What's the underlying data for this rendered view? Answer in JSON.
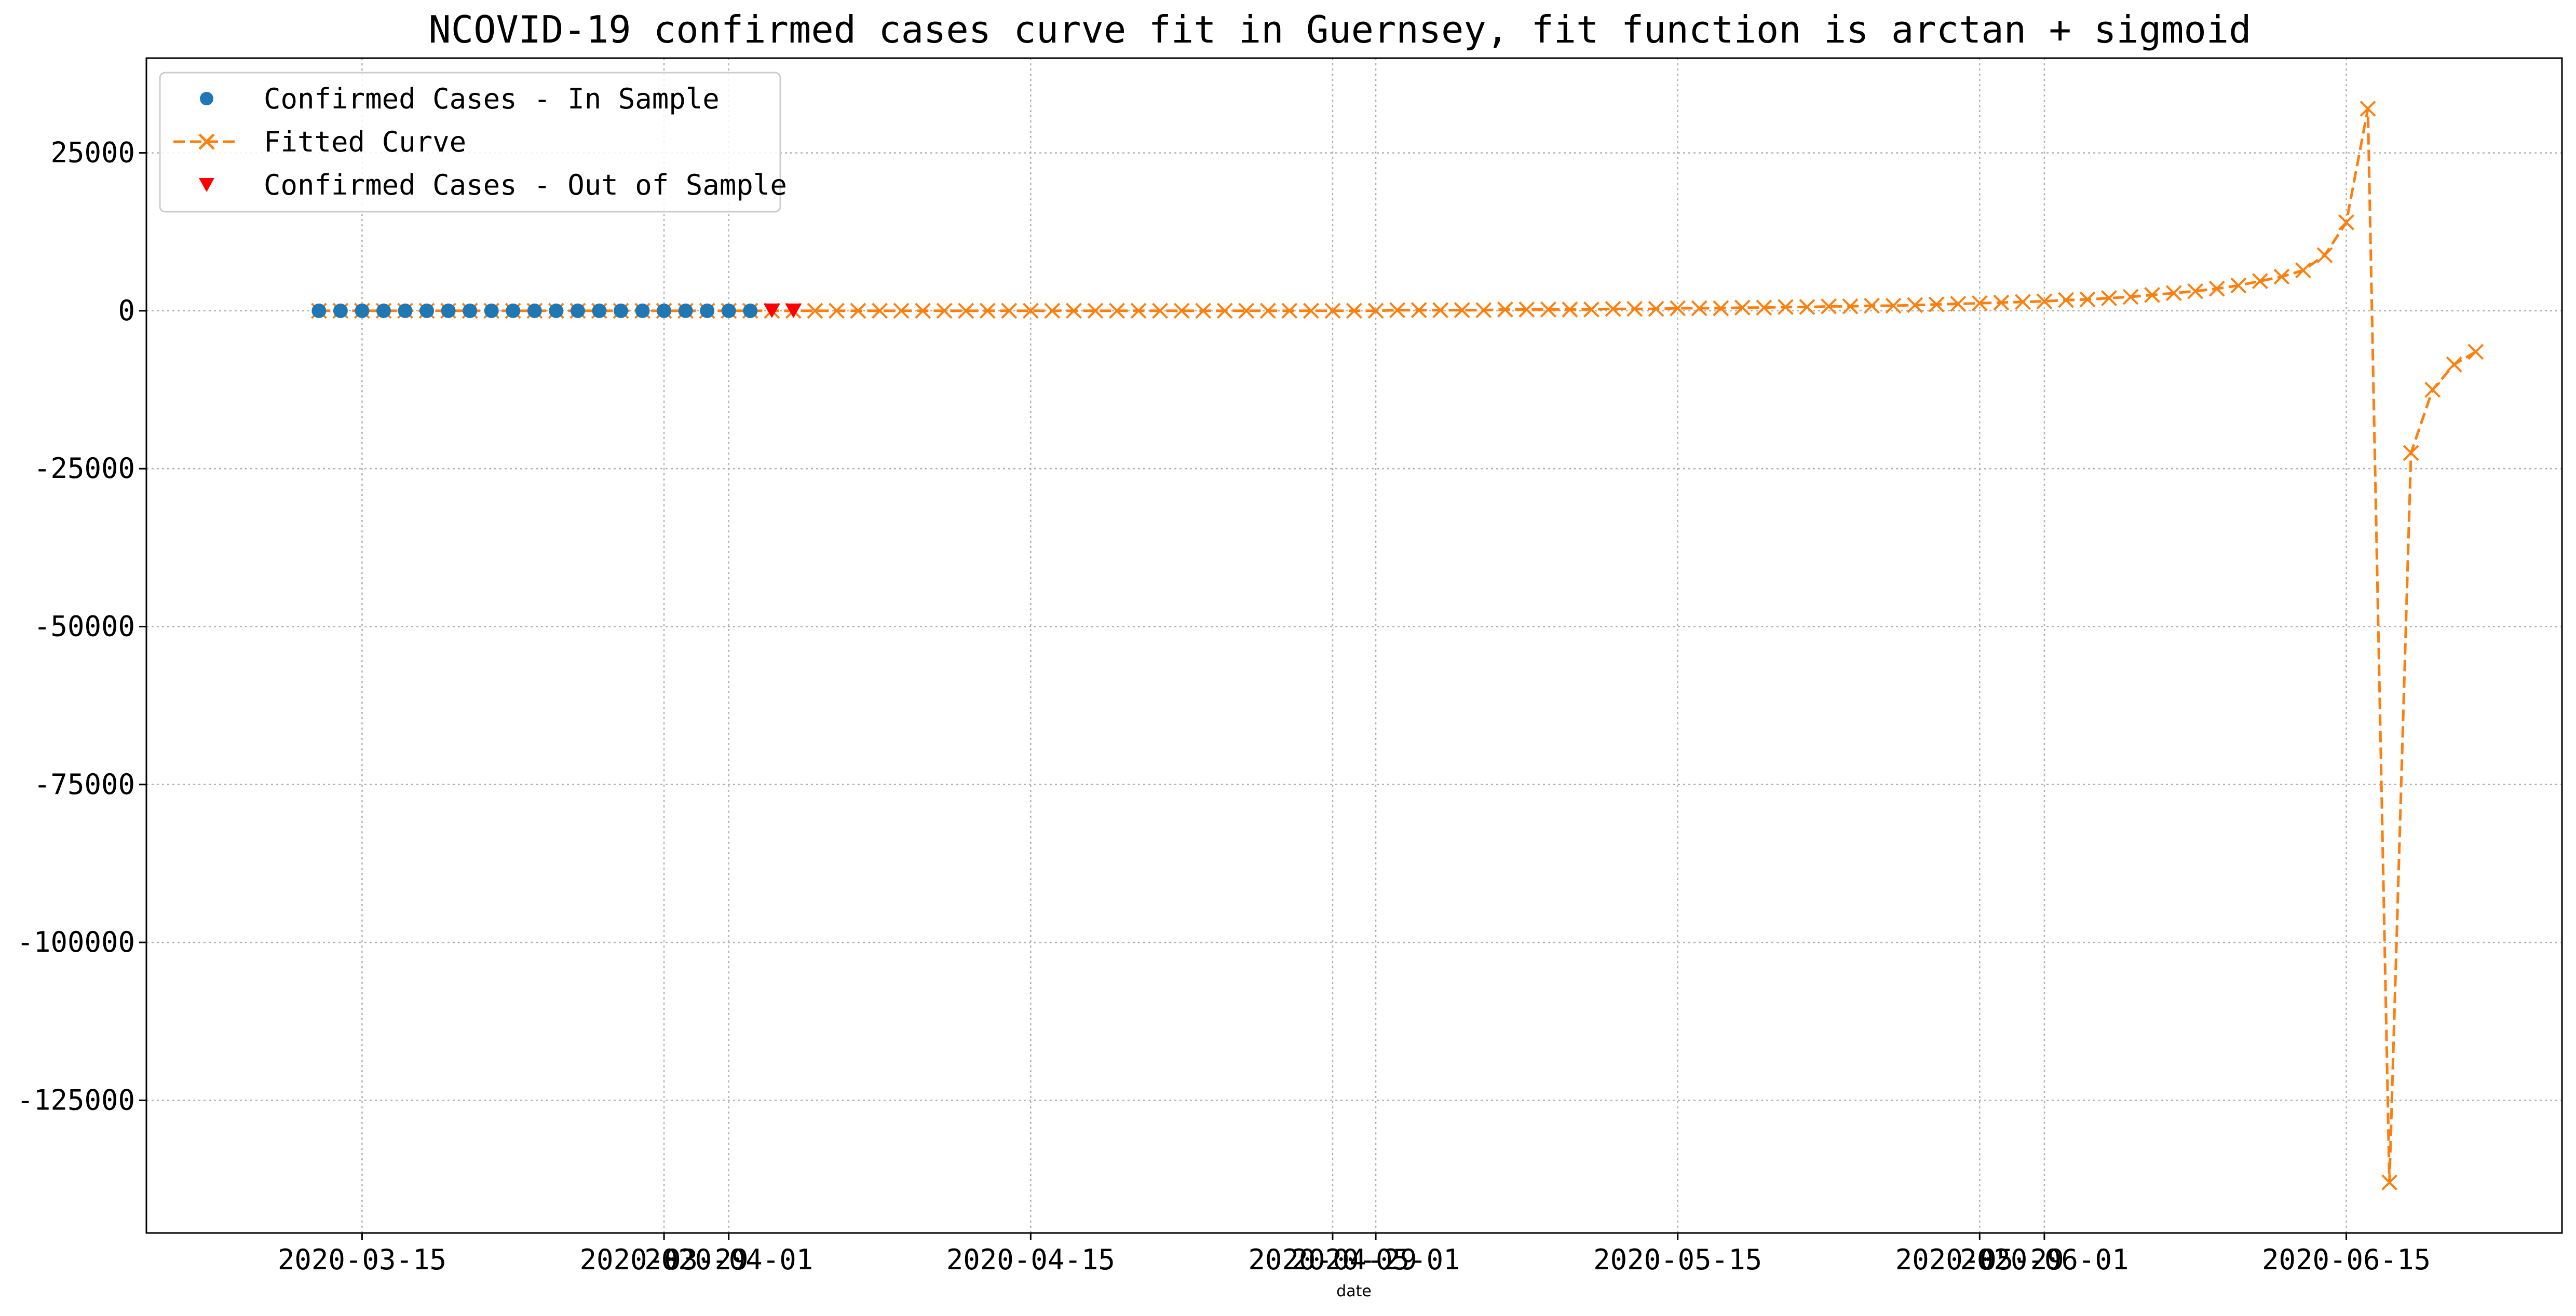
{
  "chart_data": {
    "type": "line",
    "title": "NCOVID-19 confirmed cases curve fit in Guernsey, fit function is arctan + sigmoid",
    "xlabel": "date",
    "ylabel": "",
    "x_range": [
      "2020-03-05",
      "2020-06-25"
    ],
    "ylim": [
      -146000,
      40000
    ],
    "grid": true,
    "grid_style": "dotted",
    "legend_position": "upper-left",
    "x_tick_labels": [
      "2020-03-15",
      "2020-03-29",
      "2020-04-01",
      "2020-04-15",
      "2020-04-29",
      "2020-05-01",
      "2020-05-15",
      "2020-05-29",
      "2020-06-01",
      "2020-06-15"
    ],
    "y_tick_labels": [
      "25000",
      "0",
      "-25000",
      "-50000",
      "-75000",
      "-100000",
      "-125000"
    ],
    "y_tick_values": [
      25000,
      0,
      -25000,
      -50000,
      -75000,
      -100000,
      -125000
    ],
    "series": [
      {
        "name": "Confirmed Cases - In Sample",
        "style": "marker",
        "marker": "circle",
        "color": "#1f77b4",
        "x": [
          "2020-03-13",
          "2020-03-14",
          "2020-03-15",
          "2020-03-16",
          "2020-03-17",
          "2020-03-18",
          "2020-03-19",
          "2020-03-20",
          "2020-03-21",
          "2020-03-22",
          "2020-03-23",
          "2020-03-24",
          "2020-03-25",
          "2020-03-26",
          "2020-03-27",
          "2020-03-28",
          "2020-03-29",
          "2020-03-30",
          "2020-03-31",
          "2020-04-01",
          "2020-04-02"
        ],
        "y": [
          0,
          0,
          0,
          0,
          0,
          0,
          0,
          0,
          0,
          0,
          0,
          0,
          0,
          0,
          0,
          0,
          0,
          0,
          0,
          0,
          0
        ]
      },
      {
        "name": "Fitted Curve",
        "style": "dashed-line",
        "marker": "x",
        "color": "#ff7f0e",
        "x": [
          "2020-03-13",
          "2020-03-14",
          "2020-03-15",
          "2020-03-16",
          "2020-03-17",
          "2020-03-18",
          "2020-03-19",
          "2020-03-20",
          "2020-03-21",
          "2020-03-22",
          "2020-03-23",
          "2020-03-24",
          "2020-03-25",
          "2020-03-26",
          "2020-03-27",
          "2020-03-28",
          "2020-03-29",
          "2020-03-30",
          "2020-03-31",
          "2020-04-01",
          "2020-04-02",
          "2020-04-03",
          "2020-04-04",
          "2020-04-05",
          "2020-04-06",
          "2020-04-07",
          "2020-04-08",
          "2020-04-09",
          "2020-04-10",
          "2020-04-11",
          "2020-04-12",
          "2020-04-13",
          "2020-04-14",
          "2020-04-15",
          "2020-04-16",
          "2020-04-17",
          "2020-04-18",
          "2020-04-19",
          "2020-04-20",
          "2020-04-21",
          "2020-04-22",
          "2020-04-23",
          "2020-04-24",
          "2020-04-25",
          "2020-04-26",
          "2020-04-27",
          "2020-04-28",
          "2020-04-29",
          "2020-04-30",
          "2020-05-01",
          "2020-05-02",
          "2020-05-03",
          "2020-05-04",
          "2020-05-05",
          "2020-05-06",
          "2020-05-07",
          "2020-05-08",
          "2020-05-09",
          "2020-05-10",
          "2020-05-11",
          "2020-05-12",
          "2020-05-13",
          "2020-05-14",
          "2020-05-15",
          "2020-05-16",
          "2020-05-17",
          "2020-05-18",
          "2020-05-19",
          "2020-05-20",
          "2020-05-21",
          "2020-05-22",
          "2020-05-23",
          "2020-05-24",
          "2020-05-25",
          "2020-05-26",
          "2020-05-27",
          "2020-05-28",
          "2020-05-29",
          "2020-05-30",
          "2020-05-31",
          "2020-06-01",
          "2020-06-02",
          "2020-06-03",
          "2020-06-04",
          "2020-06-05",
          "2020-06-06",
          "2020-06-07",
          "2020-06-08",
          "2020-06-09",
          "2020-06-10",
          "2020-06-11",
          "2020-06-12",
          "2020-06-13",
          "2020-06-14",
          "2020-06-15",
          "2020-06-16",
          "2020-06-17",
          "2020-06-18",
          "2020-06-19",
          "2020-06-20",
          "2020-06-21"
        ],
        "y": [
          0,
          0,
          0,
          0,
          0,
          0,
          0,
          0,
          0,
          0,
          0,
          0,
          0,
          0,
          0,
          0,
          0,
          0,
          0,
          0,
          0,
          0,
          0,
          0,
          0,
          0,
          0,
          0,
          0,
          0,
          0,
          0,
          0,
          0,
          0,
          0,
          0,
          0,
          0,
          0,
          0,
          0,
          0,
          0,
          0,
          0,
          0,
          0,
          0,
          0,
          100,
          100,
          100,
          100,
          100,
          200,
          200,
          200,
          200,
          200,
          300,
          300,
          300,
          400,
          400,
          400,
          500,
          500,
          600,
          600,
          700,
          700,
          800,
          800,
          900,
          1000,
          1100,
          1200,
          1300,
          1400,
          1500,
          1700,
          1800,
          2000,
          2200,
          2500,
          2800,
          3100,
          3500,
          4000,
          4700,
          5400,
          6400,
          8800,
          14000,
          32000,
          -138000,
          -22500,
          -12500,
          -8500,
          -6500
        ]
      },
      {
        "name": "Confirmed Cases - Out of Sample",
        "style": "marker",
        "marker": "triangle-down",
        "color": "#ff0000",
        "x": [
          "2020-04-03",
          "2020-04-04"
        ],
        "y": [
          0,
          0
        ]
      }
    ]
  }
}
